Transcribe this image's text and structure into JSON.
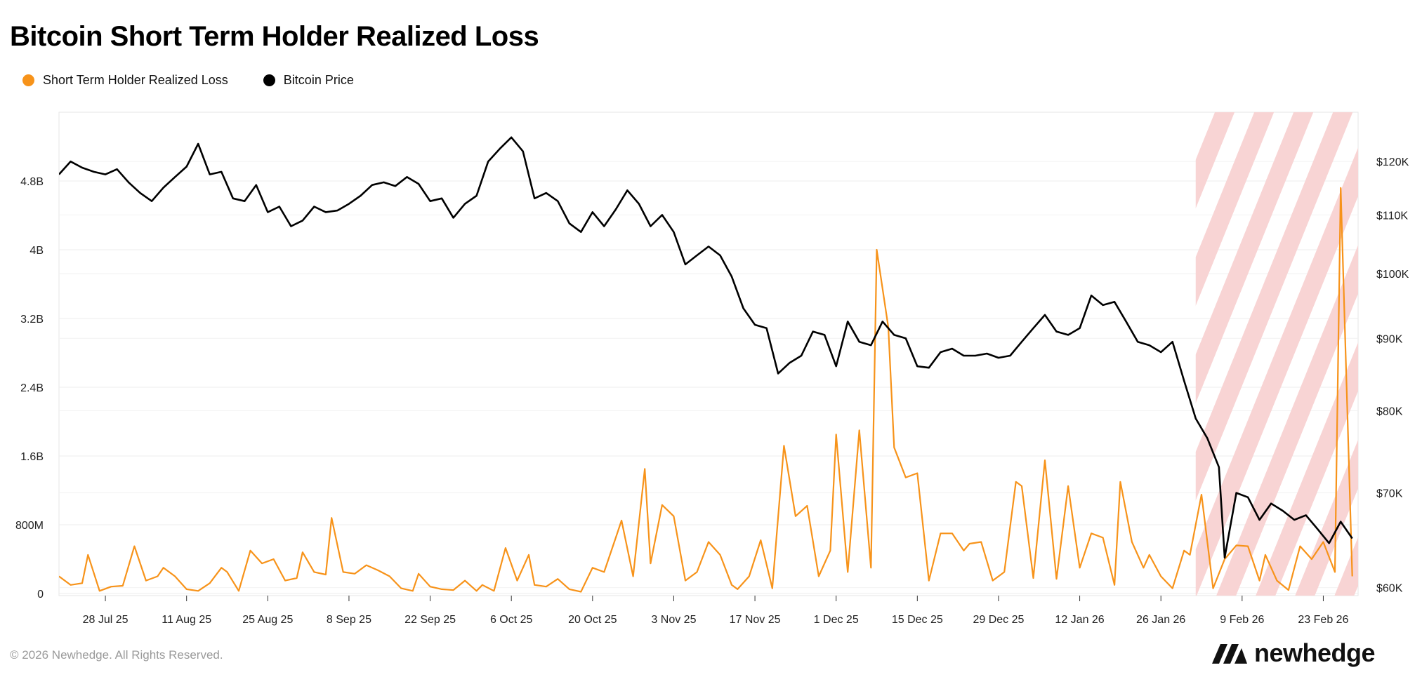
{
  "chart_data": {
    "type": "line",
    "title": "Bitcoin Short Term Holder Realized Loss",
    "legend_position": "top-left",
    "grid": true,
    "x_tick_labels": [
      "28 Jul 25",
      "11 Aug 25",
      "25 Aug 25",
      "8 Sep 25",
      "22 Sep 25",
      "6 Oct 25",
      "20 Oct 25",
      "3 Nov 25",
      "17 Nov 25",
      "1 Dec 25",
      "15 Dec 25",
      "29 Dec 25",
      "12 Jan 26",
      "26 Jan 26",
      "9 Feb 26",
      "23 Feb 26"
    ],
    "x_start": "2025-07-20",
    "x_end": "2026-03-01",
    "y_left": {
      "ticks": [
        0,
        800000000,
        1600000000,
        2400000000,
        3200000000,
        4000000000,
        4800000000
      ],
      "tick_labels": [
        "0",
        "800M",
        "1.6B",
        "2.4B",
        "3.2B",
        "4B",
        "4.8B"
      ],
      "range": [
        0,
        5600000000
      ]
    },
    "y_right": {
      "scale": "log",
      "ticks": [
        60000,
        70000,
        80000,
        90000,
        100000,
        110000,
        120000
      ],
      "tick_labels": [
        "$60K",
        "$70K",
        "$80K",
        "$90K",
        "$100K",
        "$110K",
        "$120K"
      ],
      "range": [
        59500,
        130000
      ]
    },
    "projection_region": {
      "start": "2026-02-01",
      "end": "2026-03-01",
      "style": "red-hatched"
    },
    "series": [
      {
        "name": "Short Term Holder Realized Loss",
        "color": "#F7931A",
        "axis": "left",
        "points": [
          [
            "2025-07-20",
            200000000
          ],
          [
            "2025-07-22",
            100000000
          ],
          [
            "2025-07-24",
            120000000
          ],
          [
            "2025-07-25",
            450000000
          ],
          [
            "2025-07-27",
            30000000
          ],
          [
            "2025-07-29",
            80000000
          ],
          [
            "2025-07-31",
            90000000
          ],
          [
            "2025-08-02",
            550000000
          ],
          [
            "2025-08-04",
            150000000
          ],
          [
            "2025-08-06",
            200000000
          ],
          [
            "2025-08-07",
            300000000
          ],
          [
            "2025-08-09",
            200000000
          ],
          [
            "2025-08-11",
            50000000
          ],
          [
            "2025-08-13",
            30000000
          ],
          [
            "2025-08-15",
            120000000
          ],
          [
            "2025-08-17",
            300000000
          ],
          [
            "2025-08-18",
            250000000
          ],
          [
            "2025-08-20",
            30000000
          ],
          [
            "2025-08-22",
            500000000
          ],
          [
            "2025-08-24",
            350000000
          ],
          [
            "2025-08-26",
            400000000
          ],
          [
            "2025-08-28",
            150000000
          ],
          [
            "2025-08-30",
            180000000
          ],
          [
            "2025-08-31",
            480000000
          ],
          [
            "2025-09-02",
            250000000
          ],
          [
            "2025-09-04",
            220000000
          ],
          [
            "2025-09-05",
            880000000
          ],
          [
            "2025-09-07",
            250000000
          ],
          [
            "2025-09-09",
            230000000
          ],
          [
            "2025-09-11",
            330000000
          ],
          [
            "2025-09-13",
            270000000
          ],
          [
            "2025-09-15",
            200000000
          ],
          [
            "2025-09-17",
            60000000
          ],
          [
            "2025-09-19",
            30000000
          ],
          [
            "2025-09-20",
            230000000
          ],
          [
            "2025-09-22",
            80000000
          ],
          [
            "2025-09-24",
            50000000
          ],
          [
            "2025-09-26",
            40000000
          ],
          [
            "2025-09-28",
            150000000
          ],
          [
            "2025-09-30",
            30000000
          ],
          [
            "2025-10-01",
            100000000
          ],
          [
            "2025-10-03",
            30000000
          ],
          [
            "2025-10-05",
            530000000
          ],
          [
            "2025-10-07",
            150000000
          ],
          [
            "2025-10-09",
            450000000
          ],
          [
            "2025-10-10",
            100000000
          ],
          [
            "2025-10-12",
            80000000
          ],
          [
            "2025-10-14",
            170000000
          ],
          [
            "2025-10-16",
            50000000
          ],
          [
            "2025-10-18",
            20000000
          ],
          [
            "2025-10-20",
            300000000
          ],
          [
            "2025-10-22",
            250000000
          ],
          [
            "2025-10-24",
            650000000
          ],
          [
            "2025-10-25",
            850000000
          ],
          [
            "2025-10-27",
            200000000
          ],
          [
            "2025-10-29",
            1450000000
          ],
          [
            "2025-10-30",
            350000000
          ],
          [
            "2025-11-01",
            1030000000
          ],
          [
            "2025-11-03",
            900000000
          ],
          [
            "2025-11-05",
            150000000
          ],
          [
            "2025-11-07",
            250000000
          ],
          [
            "2025-11-09",
            600000000
          ],
          [
            "2025-11-11",
            450000000
          ],
          [
            "2025-11-13",
            100000000
          ],
          [
            "2025-11-14",
            50000000
          ],
          [
            "2025-11-16",
            200000000
          ],
          [
            "2025-11-18",
            620000000
          ],
          [
            "2025-11-20",
            60000000
          ],
          [
            "2025-11-22",
            1720000000
          ],
          [
            "2025-11-24",
            900000000
          ],
          [
            "2025-11-26",
            1020000000
          ],
          [
            "2025-11-28",
            200000000
          ],
          [
            "2025-11-30",
            500000000
          ],
          [
            "2025-12-01",
            1850000000
          ],
          [
            "2025-12-03",
            250000000
          ],
          [
            "2025-12-05",
            1900000000
          ],
          [
            "2025-12-07",
            300000000
          ],
          [
            "2025-12-08",
            4000000000
          ],
          [
            "2025-12-10",
            3100000000
          ],
          [
            "2025-12-11",
            1700000000
          ],
          [
            "2025-12-13",
            1350000000
          ],
          [
            "2025-12-15",
            1400000000
          ],
          [
            "2025-12-17",
            150000000
          ],
          [
            "2025-12-19",
            700000000
          ],
          [
            "2025-12-21",
            700000000
          ],
          [
            "2025-12-23",
            500000000
          ],
          [
            "2025-12-24",
            580000000
          ],
          [
            "2025-12-26",
            600000000
          ],
          [
            "2025-12-28",
            150000000
          ],
          [
            "2025-12-30",
            250000000
          ],
          [
            "2026-01-01",
            1300000000
          ],
          [
            "2026-01-02",
            1250000000
          ],
          [
            "2026-01-04",
            180000000
          ],
          [
            "2026-01-06",
            1550000000
          ],
          [
            "2026-01-08",
            170000000
          ],
          [
            "2026-01-10",
            1250000000
          ],
          [
            "2026-01-12",
            300000000
          ],
          [
            "2026-01-14",
            700000000
          ],
          [
            "2026-01-16",
            650000000
          ],
          [
            "2026-01-18",
            100000000
          ],
          [
            "2026-01-19",
            1300000000
          ],
          [
            "2026-01-21",
            600000000
          ],
          [
            "2026-01-23",
            300000000
          ],
          [
            "2026-01-24",
            450000000
          ],
          [
            "2026-01-26",
            200000000
          ],
          [
            "2026-01-28",
            60000000
          ],
          [
            "2026-01-30",
            500000000
          ],
          [
            "2026-01-31",
            450000000
          ],
          [
            "2026-02-02",
            1150000000
          ],
          [
            "2026-02-04",
            60000000
          ],
          [
            "2026-02-06",
            400000000
          ],
          [
            "2026-02-08",
            560000000
          ],
          [
            "2026-02-10",
            550000000
          ],
          [
            "2026-02-12",
            150000000
          ],
          [
            "2026-02-13",
            450000000
          ],
          [
            "2026-02-15",
            150000000
          ],
          [
            "2026-02-17",
            40000000
          ],
          [
            "2026-02-19",
            550000000
          ],
          [
            "2026-02-21",
            400000000
          ],
          [
            "2026-02-23",
            600000000
          ],
          [
            "2026-02-25",
            250000000
          ],
          [
            "2026-02-26",
            4720000000
          ],
          [
            "2026-02-28",
            200000000
          ]
        ]
      },
      {
        "name": "Bitcoin Price",
        "color": "#000000",
        "axis": "right",
        "points": [
          [
            "2025-07-20",
            117500
          ],
          [
            "2025-07-22",
            120000
          ],
          [
            "2025-07-24",
            118800
          ],
          [
            "2025-07-26",
            118000
          ],
          [
            "2025-07-28",
            117500
          ],
          [
            "2025-07-30",
            118500
          ],
          [
            "2025-08-01",
            116000
          ],
          [
            "2025-08-03",
            114000
          ],
          [
            "2025-08-05",
            112500
          ],
          [
            "2025-08-07",
            115000
          ],
          [
            "2025-08-09",
            117000
          ],
          [
            "2025-08-11",
            119000
          ],
          [
            "2025-08-13",
            123500
          ],
          [
            "2025-08-15",
            117500
          ],
          [
            "2025-08-17",
            118000
          ],
          [
            "2025-08-19",
            113000
          ],
          [
            "2025-08-21",
            112500
          ],
          [
            "2025-08-23",
            115500
          ],
          [
            "2025-08-25",
            110500
          ],
          [
            "2025-08-27",
            111500
          ],
          [
            "2025-08-29",
            108000
          ],
          [
            "2025-08-31",
            109000
          ],
          [
            "2025-09-02",
            111500
          ],
          [
            "2025-09-04",
            110500
          ],
          [
            "2025-09-06",
            110800
          ],
          [
            "2025-09-08",
            112000
          ],
          [
            "2025-09-10",
            113500
          ],
          [
            "2025-09-12",
            115500
          ],
          [
            "2025-09-14",
            116000
          ],
          [
            "2025-09-16",
            115300
          ],
          [
            "2025-09-18",
            117000
          ],
          [
            "2025-09-20",
            115700
          ],
          [
            "2025-09-22",
            112500
          ],
          [
            "2025-09-24",
            113000
          ],
          [
            "2025-09-26",
            109500
          ],
          [
            "2025-09-28",
            112000
          ],
          [
            "2025-09-30",
            113500
          ],
          [
            "2025-10-02",
            120000
          ],
          [
            "2025-10-04",
            122500
          ],
          [
            "2025-10-06",
            124800
          ],
          [
            "2025-10-08",
            122000
          ],
          [
            "2025-10-10",
            113000
          ],
          [
            "2025-10-12",
            114000
          ],
          [
            "2025-10-14",
            112500
          ],
          [
            "2025-10-16",
            108500
          ],
          [
            "2025-10-18",
            107000
          ],
          [
            "2025-10-20",
            110500
          ],
          [
            "2025-10-22",
            108000
          ],
          [
            "2025-10-24",
            111000
          ],
          [
            "2025-10-26",
            114500
          ],
          [
            "2025-10-28",
            112000
          ],
          [
            "2025-10-30",
            108000
          ],
          [
            "2025-11-01",
            110000
          ],
          [
            "2025-11-03",
            107000
          ],
          [
            "2025-11-05",
            101500
          ],
          [
            "2025-11-07",
            103000
          ],
          [
            "2025-11-09",
            104500
          ],
          [
            "2025-11-11",
            103000
          ],
          [
            "2025-11-13",
            99500
          ],
          [
            "2025-11-15",
            94500
          ],
          [
            "2025-11-17",
            92000
          ],
          [
            "2025-11-19",
            91500
          ],
          [
            "2025-11-21",
            85000
          ],
          [
            "2025-11-23",
            86500
          ],
          [
            "2025-11-25",
            87500
          ],
          [
            "2025-11-27",
            91000
          ],
          [
            "2025-11-29",
            90500
          ],
          [
            "2025-12-01",
            86000
          ],
          [
            "2025-12-03",
            92500
          ],
          [
            "2025-12-05",
            89500
          ],
          [
            "2025-12-07",
            89000
          ],
          [
            "2025-12-09",
            92500
          ],
          [
            "2025-12-11",
            90500
          ],
          [
            "2025-12-13",
            90000
          ],
          [
            "2025-12-15",
            86000
          ],
          [
            "2025-12-17",
            85800
          ],
          [
            "2025-12-19",
            88000
          ],
          [
            "2025-12-21",
            88500
          ],
          [
            "2025-12-23",
            87500
          ],
          [
            "2025-12-25",
            87500
          ],
          [
            "2025-12-27",
            87800
          ],
          [
            "2025-12-29",
            87200
          ],
          [
            "2025-12-31",
            87500
          ],
          [
            "2026-01-02",
            89500
          ],
          [
            "2026-01-04",
            91500
          ],
          [
            "2026-01-06",
            93500
          ],
          [
            "2026-01-08",
            91000
          ],
          [
            "2026-01-10",
            90500
          ],
          [
            "2026-01-12",
            91500
          ],
          [
            "2026-01-14",
            96500
          ],
          [
            "2026-01-16",
            95000
          ],
          [
            "2026-01-18",
            95500
          ],
          [
            "2026-01-20",
            92500
          ],
          [
            "2026-01-22",
            89500
          ],
          [
            "2026-01-24",
            89000
          ],
          [
            "2026-01-26",
            88000
          ],
          [
            "2026-01-28",
            89500
          ],
          [
            "2026-01-30",
            84000
          ],
          [
            "2026-02-01",
            79000
          ],
          [
            "2026-02-03",
            76500
          ],
          [
            "2026-02-05",
            73000
          ],
          [
            "2026-02-06",
            63000
          ],
          [
            "2026-02-08",
            70000
          ],
          [
            "2026-02-10",
            69500
          ],
          [
            "2026-02-12",
            67000
          ],
          [
            "2026-02-14",
            68800
          ],
          [
            "2026-02-16",
            68000
          ],
          [
            "2026-02-18",
            67000
          ],
          [
            "2026-02-20",
            67500
          ],
          [
            "2026-02-22",
            66000
          ],
          [
            "2026-02-24",
            64500
          ],
          [
            "2026-02-26",
            66800
          ],
          [
            "2026-02-28",
            65000
          ]
        ]
      }
    ]
  },
  "header": {
    "title": "Bitcoin Short Term Holder Realized Loss"
  },
  "legend": [
    {
      "label": "Short Term Holder Realized Loss",
      "color": "#F7931A"
    },
    {
      "label": "Bitcoin Price",
      "color": "#000000"
    }
  ],
  "footer": {
    "copyright": "© 2026 Newhedge. All Rights Reserved.",
    "brand": "newhedge"
  }
}
